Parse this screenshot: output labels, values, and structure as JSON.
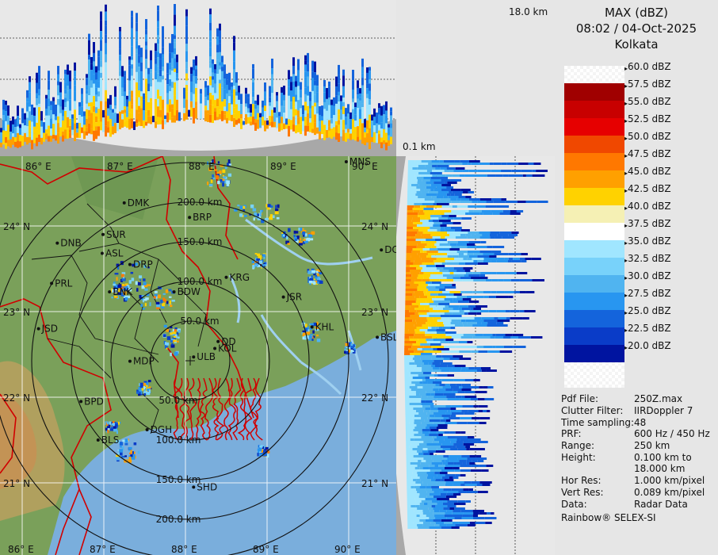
{
  "header": {
    "product": "MAX (dBZ)",
    "datetime": "08:02 / 04-Oct-2025",
    "station": "Kolkata"
  },
  "heights": {
    "top": "18.0 km",
    "bottom": "0.1 km"
  },
  "legend": [
    {
      "label": "60.0 dBZ",
      "color": "checker"
    },
    {
      "label": "57.5 dBZ",
      "color": "#a00000"
    },
    {
      "label": "55.0 dBZ",
      "color": "#c80000"
    },
    {
      "label": "52.5 dBZ",
      "color": "#e60000"
    },
    {
      "label": "50.0 dBZ",
      "color": "#f04800"
    },
    {
      "label": "47.5 dBZ",
      "color": "#ff7800"
    },
    {
      "label": "45.0 dBZ",
      "color": "#ffa000"
    },
    {
      "label": "42.5 dBZ",
      "color": "#ffd200"
    },
    {
      "label": "40.0 dBZ",
      "color": "#f5f0b4"
    },
    {
      "label": "37.5 dBZ",
      "color": "#ffffff"
    },
    {
      "label": "35.0 dBZ",
      "color": "#a0e6ff"
    },
    {
      "label": "32.5 dBZ",
      "color": "#78d2fa"
    },
    {
      "label": "30.0 dBZ",
      "color": "#50b4f0"
    },
    {
      "label": "27.5 dBZ",
      "color": "#2896f0"
    },
    {
      "label": "25.0 dBZ",
      "color": "#1464dc"
    },
    {
      "label": "22.5 dBZ",
      "color": "#0a3cc8"
    },
    {
      "label": "20.0 dBZ",
      "color": "#0014a0"
    }
  ],
  "info": [
    {
      "key": "Pdf File:",
      "value": "250Z.max"
    },
    {
      "key": "Clutter Filter:",
      "value": "IIRDoppler 7"
    },
    {
      "key": "Time sampling:",
      "value": "48"
    },
    {
      "key": "PRF:",
      "value": "600 Hz / 450 Hz"
    },
    {
      "key": "Range:",
      "value": "250 km"
    },
    {
      "key": "Height:",
      "value": "0.100 km to\n18.000 km"
    },
    {
      "key": "Hor Res:",
      "value": "1.000 km/pixel"
    },
    {
      "key": "Vert Res:",
      "value": "0.089 km/pixel"
    },
    {
      "key": "Data:",
      "value": "Radar Data"
    }
  ],
  "footer": "Rainbow® SELEX-SI",
  "map": {
    "lon_top": [
      "86° E",
      "87° E",
      "88° E",
      "89° E",
      "90° E"
    ],
    "lon_bottom": [
      "86° E",
      "87° E",
      "88° E",
      "89° E",
      "90° E"
    ],
    "lat_left": [
      "24° N",
      "23° N",
      "22° N",
      "21° N"
    ],
    "lat_right": [
      "24° N",
      "23° N",
      "22° N",
      "21° N"
    ],
    "rings": [
      "50.0 km",
      "100.0 km",
      "150.0 km",
      "200.0 km"
    ],
    "rings_north": [
      "50.0 km",
      "100.0 km",
      "150.0 km",
      "200.0 km"
    ],
    "cities": [
      {
        "name": "MNS",
        "lon": 89.97,
        "lat": 24.75
      },
      {
        "name": "DMK",
        "lon": 87.25,
        "lat": 24.27
      },
      {
        "name": "BRP",
        "lon": 88.05,
        "lat": 24.1
      },
      {
        "name": "SUR",
        "lon": 86.99,
        "lat": 23.9
      },
      {
        "name": "DNB",
        "lon": 86.43,
        "lat": 23.8
      },
      {
        "name": "ASL",
        "lon": 86.98,
        "lat": 23.68
      },
      {
        "name": "DCA",
        "lon": 90.4,
        "lat": 23.72
      },
      {
        "name": "DRP",
        "lon": 87.32,
        "lat": 23.55
      },
      {
        "name": "KRG",
        "lon": 88.5,
        "lat": 23.4
      },
      {
        "name": "PRL",
        "lon": 86.36,
        "lat": 23.33
      },
      {
        "name": "BNK",
        "lon": 87.07,
        "lat": 23.23
      },
      {
        "name": "BDW",
        "lon": 87.86,
        "lat": 23.23
      },
      {
        "name": "JSR",
        "lon": 89.2,
        "lat": 23.17
      },
      {
        "name": "KHL",
        "lon": 89.55,
        "lat": 22.82
      },
      {
        "name": "JSD",
        "lon": 86.2,
        "lat": 22.8
      },
      {
        "name": "DD",
        "lon": 88.4,
        "lat": 22.65
      },
      {
        "name": "KOL",
        "lon": 88.36,
        "lat": 22.57
      },
      {
        "name": "BSL",
        "lon": 90.35,
        "lat": 22.7
      },
      {
        "name": "MDP",
        "lon": 87.32,
        "lat": 22.42
      },
      {
        "name": "ULB",
        "lon": 88.1,
        "lat": 22.47
      },
      {
        "name": "BPD",
        "lon": 86.72,
        "lat": 21.95
      },
      {
        "name": "DGH",
        "lon": 87.53,
        "lat": 21.62
      },
      {
        "name": "BLS",
        "lon": 86.93,
        "lat": 21.5
      },
      {
        "name": "SHD",
        "lon": 88.1,
        "lat": 20.95
      }
    ]
  },
  "colors": {
    "land": "#7aa05a",
    "sea": "#7aaedc",
    "border": "#d00000",
    "district": "#111111"
  }
}
